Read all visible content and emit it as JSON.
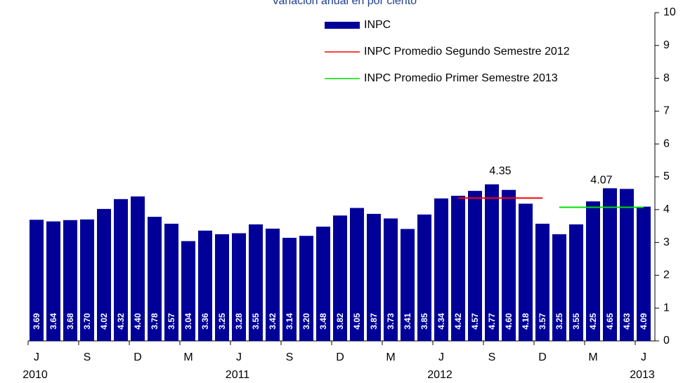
{
  "chart_data": {
    "type": "bar",
    "subtitle": "Variación anual en por ciento",
    "categories": [
      "J",
      null,
      null,
      "S",
      null,
      null,
      "D",
      null,
      null,
      "M",
      null,
      null,
      "J",
      null,
      null,
      "S",
      null,
      null,
      "D",
      null,
      null,
      "M",
      null,
      null,
      "J",
      null,
      null,
      "S",
      null,
      null,
      "D",
      null,
      null,
      "M",
      null,
      null,
      "J"
    ],
    "category_groups": [
      "2010",
      null,
      null,
      null,
      null,
      null,
      null,
      null,
      null,
      null,
      null,
      null,
      "2011",
      null,
      null,
      null,
      null,
      null,
      null,
      null,
      null,
      null,
      null,
      null,
      "2012",
      null,
      null,
      null,
      null,
      null,
      null,
      null,
      null,
      null,
      null,
      null,
      "2013"
    ],
    "series": [
      {
        "name": "INPC",
        "type": "bar",
        "color": "#000099",
        "values": [
          3.69,
          3.64,
          3.68,
          3.7,
          4.02,
          4.32,
          4.4,
          3.78,
          3.57,
          3.04,
          3.36,
          3.25,
          3.28,
          3.55,
          3.42,
          3.14,
          3.2,
          3.48,
          3.82,
          4.05,
          3.87,
          3.73,
          3.41,
          3.85,
          4.34,
          4.42,
          4.57,
          4.77,
          4.6,
          4.18,
          3.57,
          3.25,
          3.55,
          4.25,
          4.65,
          4.63,
          4.09
        ],
        "value_labels": [
          "3.69",
          "3.64",
          "3.68",
          "3.70",
          "4.02",
          "4.32",
          "4.40",
          "3.78",
          "3.57",
          "3.04",
          "3.36",
          "3.25",
          "3.28",
          "3.55",
          "3.42",
          "3.14",
          "3.20",
          "3.48",
          "3.82",
          "4.05",
          "3.87",
          "3.73",
          "3.41",
          "3.85",
          "4.34",
          "4.42",
          "4.57",
          "4.77",
          "4.60",
          "4.18",
          "3.57",
          "3.25",
          "3.55",
          "4.25",
          "4.65",
          "4.63",
          "4.09"
        ]
      },
      {
        "name": "INPC Promedio Segundo Semestre 2012",
        "type": "line",
        "color": "#ff0000",
        "values": [
          null,
          null,
          null,
          null,
          null,
          null,
          null,
          null,
          null,
          null,
          null,
          null,
          null,
          null,
          null,
          null,
          null,
          null,
          null,
          null,
          null,
          null,
          null,
          null,
          null,
          4.35,
          4.35,
          4.35,
          4.35,
          4.35,
          4.35,
          null,
          null,
          null,
          null,
          null,
          null
        ]
      },
      {
        "name": "INPC Promedio Primer Semestre 2013",
        "type": "line",
        "color": "#00dd00",
        "values": [
          null,
          null,
          null,
          null,
          null,
          null,
          null,
          null,
          null,
          null,
          null,
          null,
          null,
          null,
          null,
          null,
          null,
          null,
          null,
          null,
          null,
          null,
          null,
          null,
          null,
          null,
          null,
          null,
          null,
          null,
          null,
          4.07,
          4.07,
          4.07,
          4.07,
          4.07,
          4.07
        ]
      }
    ],
    "ylim": [
      0,
      10
    ],
    "yticks": [
      0,
      1,
      2,
      3,
      4,
      5,
      6,
      7,
      8,
      9,
      10
    ],
    "grid": false
  }
}
